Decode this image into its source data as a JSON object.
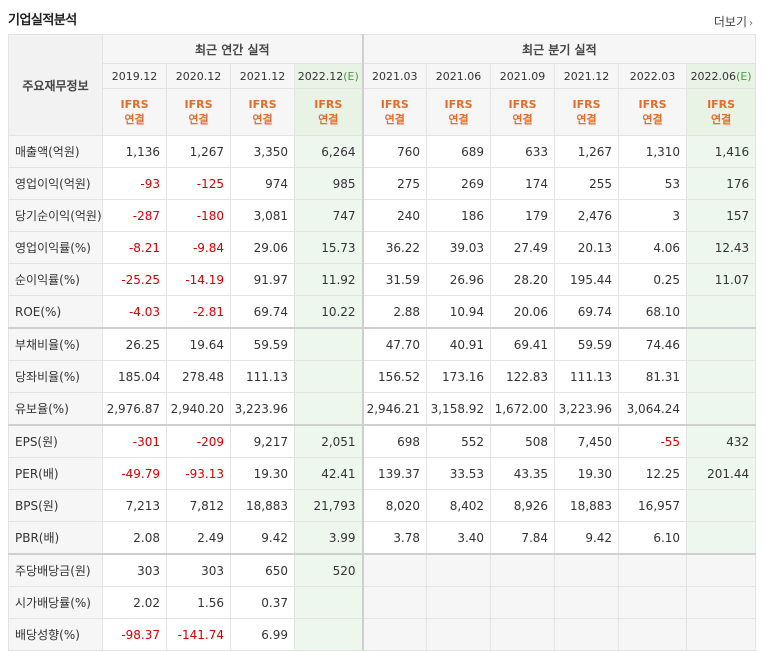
{
  "header": {
    "title": "기업실적분석",
    "more_label": "더보기"
  },
  "table": {
    "rowhead_label": "주요재무정보",
    "annual_label": "최근 연간 실적",
    "quarter_label": "최근 분기 실적",
    "annual_periods": [
      "2019.12",
      "2020.12",
      "2021.12",
      "2022.12(E)"
    ],
    "quarter_periods": [
      "2021.03",
      "2021.06",
      "2021.09",
      "2021.12",
      "2022.03",
      "2022.06(E)"
    ],
    "basis_top": "IFRS",
    "basis_bottom": "연결",
    "rows": [
      {
        "label": "매출액(억원)",
        "values": [
          "1,136",
          "1,267",
          "3,350",
          "6,264",
          "760",
          "689",
          "633",
          "1,267",
          "1,310",
          "1,416"
        ]
      },
      {
        "label": "영업이익(억원)",
        "values": [
          "-93",
          "-125",
          "974",
          "985",
          "275",
          "269",
          "174",
          "255",
          "53",
          "176"
        ]
      },
      {
        "label": "당기순이익(억원)",
        "values": [
          "-287",
          "-180",
          "3,081",
          "747",
          "240",
          "186",
          "179",
          "2,476",
          "3",
          "157"
        ]
      },
      {
        "label": "영업이익률(%)",
        "values": [
          "-8.21",
          "-9.84",
          "29.06",
          "15.73",
          "36.22",
          "39.03",
          "27.49",
          "20.13",
          "4.06",
          "12.43"
        ]
      },
      {
        "label": "순이익률(%)",
        "values": [
          "-25.25",
          "-14.19",
          "91.97",
          "11.92",
          "31.59",
          "26.96",
          "28.20",
          "195.44",
          "0.25",
          "11.07"
        ]
      },
      {
        "label": "ROE(%)",
        "values": [
          "-4.03",
          "-2.81",
          "69.74",
          "10.22",
          "2.88",
          "10.94",
          "20.06",
          "69.74",
          "68.10",
          ""
        ]
      },
      {
        "label": "부채비율(%)",
        "values": [
          "26.25",
          "19.64",
          "59.59",
          "",
          "47.70",
          "40.91",
          "69.41",
          "59.59",
          "74.46",
          ""
        ]
      },
      {
        "label": "당좌비율(%)",
        "values": [
          "185.04",
          "278.48",
          "111.13",
          "",
          "156.52",
          "173.16",
          "122.83",
          "111.13",
          "81.31",
          ""
        ]
      },
      {
        "label": "유보율(%)",
        "values": [
          "2,976.87",
          "2,940.20",
          "3,223.96",
          "",
          "2,946.21",
          "3,158.92",
          "1,672.00",
          "3,223.96",
          "3,064.24",
          ""
        ]
      },
      {
        "label": "EPS(원)",
        "values": [
          "-301",
          "-209",
          "9,217",
          "2,051",
          "698",
          "552",
          "508",
          "7,450",
          "-55",
          "432"
        ]
      },
      {
        "label": "PER(배)",
        "values": [
          "-49.79",
          "-93.13",
          "19.30",
          "42.41",
          "139.37",
          "33.53",
          "43.35",
          "19.30",
          "12.25",
          "201.44"
        ]
      },
      {
        "label": "BPS(원)",
        "values": [
          "7,213",
          "7,812",
          "18,883",
          "21,793",
          "8,020",
          "8,402",
          "8,926",
          "18,883",
          "16,957",
          ""
        ]
      },
      {
        "label": "PBR(배)",
        "values": [
          "2.08",
          "2.49",
          "9.42",
          "3.99",
          "3.78",
          "3.40",
          "7.84",
          "9.42",
          "6.10",
          ""
        ]
      },
      {
        "label": "주당배당금(원)",
        "values": [
          "303",
          "303",
          "650",
          "520",
          "",
          "",
          "",
          "",
          "",
          ""
        ]
      },
      {
        "label": "시가배당률(%)",
        "values": [
          "2.02",
          "1.56",
          "0.37",
          "",
          "",
          "",
          "",
          "",
          "",
          ""
        ]
      },
      {
        "label": "배당성향(%)",
        "values": [
          "-98.37",
          "-141.74",
          "6.99",
          "",
          "",
          "",
          "",
          "",
          "",
          ""
        ]
      }
    ]
  },
  "colors": {
    "negative": "#d00000",
    "ifrs": "#e26d2a",
    "estimate_bg": "#eef7ee"
  }
}
